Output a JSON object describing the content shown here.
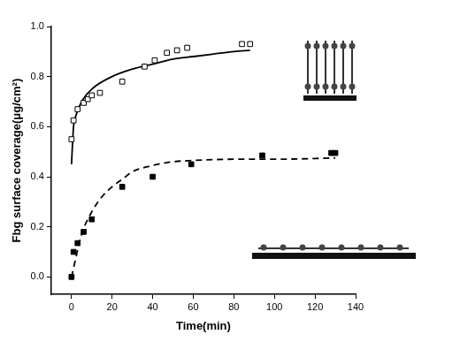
{
  "chart_data": {
    "type": "scatter",
    "x_label": "Time(min)",
    "y_label": "Fbg surface coverage(μg/cm²)",
    "xlim": [
      -10,
      140
    ],
    "xticks": [
      0,
      20,
      40,
      60,
      80,
      100,
      120,
      140
    ],
    "ylim": [
      -0.07,
      1.0
    ],
    "yticks": [
      {
        "value": 0,
        "label": "0.0"
      },
      {
        "value": 0.2,
        "label": "0.2"
      },
      {
        "value": 0.4,
        "label": "0.4"
      },
      {
        "value": 0.6,
        "label": "0.6"
      },
      {
        "value": 0.8,
        "label": "0.8"
      },
      {
        "value": 1.0,
        "label": "1.0"
      }
    ],
    "grid": false,
    "series": [
      {
        "type": "scatter",
        "marker": "square_open",
        "color": "#000000",
        "x": [
          0,
          1,
          3,
          6,
          8,
          10,
          14,
          25,
          36,
          41,
          47,
          52,
          57,
          84,
          88
        ],
        "values": [
          0.55,
          0.625,
          0.67,
          0.695,
          0.71,
          0.725,
          0.735,
          0.78,
          0.84,
          0.865,
          0.895,
          0.905,
          0.915,
          0.93,
          0.93
        ]
      },
      {
        "type": "line",
        "line_style": "solid",
        "color": "#000000",
        "x": [
          0,
          1,
          2,
          5,
          10,
          20,
          30,
          40,
          50,
          60,
          70,
          80,
          88
        ],
        "values": [
          0.45,
          0.6,
          0.64,
          0.7,
          0.75,
          0.8,
          0.83,
          0.85,
          0.87,
          0.88,
          0.89,
          0.9,
          0.905
        ]
      },
      {
        "type": "scatter",
        "marker": "square_filled",
        "color": "#000000",
        "x": [
          0,
          1,
          3,
          6,
          10,
          25,
          40,
          59,
          94,
          128,
          130
        ],
        "values": [
          0,
          0.1,
          0.135,
          0.18,
          0.23,
          0.36,
          0.4,
          0.45,
          0.485,
          0.495,
          0.495
        ]
      },
      {
        "type": "line",
        "line_style": "dashed",
        "color": "#000000",
        "x": [
          0,
          5,
          10,
          15,
          20,
          25,
          30,
          40,
          50,
          60,
          80,
          100,
          130
        ],
        "values": [
          0,
          0.17,
          0.26,
          0.32,
          0.36,
          0.39,
          0.42,
          0.445,
          0.46,
          0.465,
          0.47,
          0.47,
          0.475
        ]
      }
    ]
  }
}
